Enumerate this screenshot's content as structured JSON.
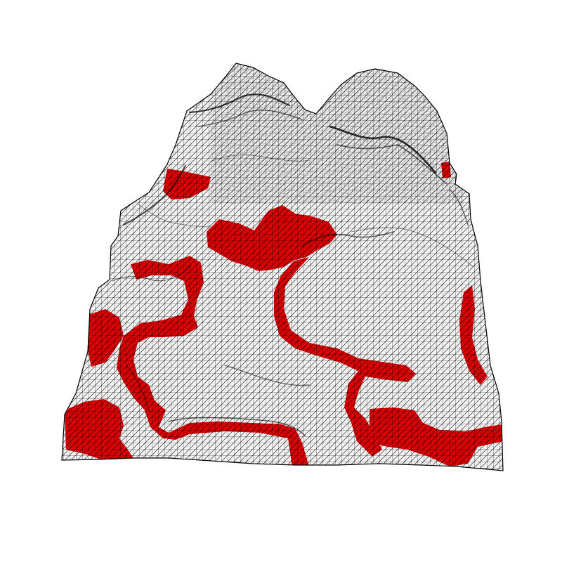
{
  "scene": {
    "subject": "terrain-wireframe-mesh",
    "background_color": "#ffffff",
    "surface_color": "#f2f2f2",
    "wire_color": "#000000",
    "highlight_color": "#dd0000",
    "highlight_regions": 8
  }
}
